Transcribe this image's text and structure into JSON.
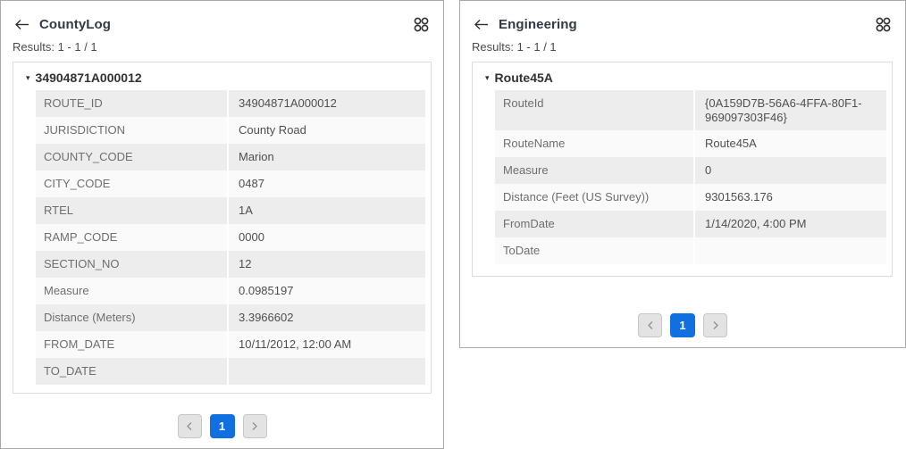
{
  "colors": {
    "accent_blue": "#1070e0",
    "panel_border": "#a9a9a9",
    "row_shaded": "#ededed",
    "row_light": "#fafafa",
    "label_text": "#6e6e6e",
    "value_text": "#4f4f4f"
  },
  "icons": {
    "back": "back-arrow-icon",
    "grid": "results-grid-icon",
    "collapse": "collapse-arrow-icon",
    "prev": "chevron-left-icon",
    "next": "chevron-right-icon"
  },
  "panels": [
    {
      "title": "CountyLog",
      "results_label": "Results: 1 - 1 / 1",
      "feature": {
        "title": "34904871A000012",
        "collapse_glyph": "▾",
        "rows": [
          {
            "label": "ROUTE_ID",
            "value": "34904871A000012"
          },
          {
            "label": "JURISDICTION",
            "value": "County Road"
          },
          {
            "label": "COUNTY_CODE",
            "value": "Marion"
          },
          {
            "label": "CITY_CODE",
            "value": "0487"
          },
          {
            "label": "RTEL",
            "value": "1A"
          },
          {
            "label": "RAMP_CODE",
            "value": "0000"
          },
          {
            "label": "SECTION_NO",
            "value": "12"
          },
          {
            "label": "Measure",
            "value": "0.0985197"
          },
          {
            "label": "Distance (Meters)",
            "value": "3.3966602"
          },
          {
            "label": "FROM_DATE",
            "value": "10/11/2012, 12:00 AM"
          },
          {
            "label": "TO_DATE",
            "value": ""
          }
        ]
      },
      "pagination": {
        "current_page": "1"
      }
    },
    {
      "title": "Engineering",
      "results_label": "Results: 1 - 1 / 1",
      "feature": {
        "title": "Route45A",
        "collapse_glyph": "▾",
        "rows": [
          {
            "label": "RouteId",
            "value": "{0A159D7B-56A6-4FFA-80F1-969097303F46}"
          },
          {
            "label": "RouteName",
            "value": "Route45A"
          },
          {
            "label": "Measure",
            "value": "0"
          },
          {
            "label": "Distance (Feet (US Survey))",
            "value": "9301563.176"
          },
          {
            "label": "FromDate",
            "value": "1/14/2020, 4:00 PM"
          },
          {
            "label": "ToDate",
            "value": ""
          }
        ]
      },
      "pagination": {
        "current_page": "1"
      }
    }
  ]
}
